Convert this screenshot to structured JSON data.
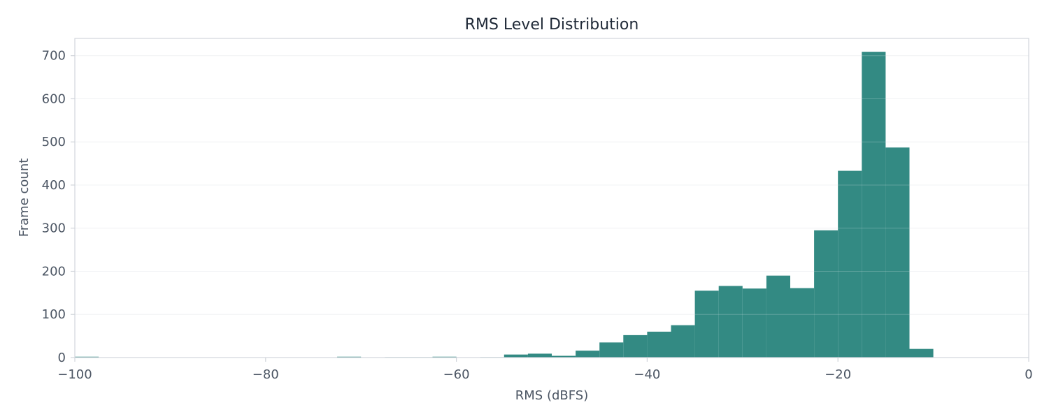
{
  "chart_data": {
    "type": "bar",
    "subtype": "histogram",
    "title": "RMS Level Distribution",
    "xlabel": "RMS (dBFS)",
    "ylabel": "Frame count",
    "xlim": [
      -100,
      0
    ],
    "ylim": [
      0,
      740
    ],
    "xticks": [
      -100,
      -80,
      -60,
      -40,
      -20,
      0
    ],
    "xtick_labels": [
      "−100",
      "−80",
      "−60",
      "−40",
      "−20",
      "0"
    ],
    "yticks": [
      0,
      100,
      200,
      300,
      400,
      500,
      600,
      700
    ],
    "ytick_labels": [
      "0",
      "100",
      "200",
      "300",
      "400",
      "500",
      "600",
      "700"
    ],
    "grid": true,
    "colors": {
      "bar": "#338A83",
      "grid": "#eef0f2",
      "spine": "#d1d5db",
      "text": "#4b5563",
      "title": "#1f2937"
    },
    "bins": [
      {
        "x0": -100.0,
        "x1": -97.5,
        "count": 2
      },
      {
        "x0": -72.5,
        "x1": -70.0,
        "count": 2
      },
      {
        "x0": -67.5,
        "x1": -65.0,
        "count": 1
      },
      {
        "x0": -65.0,
        "x1": -62.5,
        "count": 1
      },
      {
        "x0": -62.5,
        "x1": -60.0,
        "count": 2
      },
      {
        "x0": -57.5,
        "x1": -55.0,
        "count": 1
      },
      {
        "x0": -55.0,
        "x1": -52.5,
        "count": 7
      },
      {
        "x0": -52.5,
        "x1": -50.0,
        "count": 9
      },
      {
        "x0": -50.0,
        "x1": -47.5,
        "count": 4
      },
      {
        "x0": -47.5,
        "x1": -45.0,
        "count": 16
      },
      {
        "x0": -45.0,
        "x1": -42.5,
        "count": 35
      },
      {
        "x0": -42.5,
        "x1": -40.0,
        "count": 52
      },
      {
        "x0": -40.0,
        "x1": -37.5,
        "count": 60
      },
      {
        "x0": -37.5,
        "x1": -35.0,
        "count": 75
      },
      {
        "x0": -35.0,
        "x1": -32.5,
        "count": 155
      },
      {
        "x0": -32.5,
        "x1": -30.0,
        "count": 166
      },
      {
        "x0": -30.0,
        "x1": -27.5,
        "count": 160
      },
      {
        "x0": -27.5,
        "x1": -25.0,
        "count": 190
      },
      {
        "x0": -25.0,
        "x1": -22.5,
        "count": 161
      },
      {
        "x0": -22.5,
        "x1": -20.0,
        "count": 295
      },
      {
        "x0": -20.0,
        "x1": -17.5,
        "count": 433
      },
      {
        "x0": -17.5,
        "x1": -15.0,
        "count": 709
      },
      {
        "x0": -15.0,
        "x1": -12.5,
        "count": 487
      },
      {
        "x0": -12.5,
        "x1": -10.0,
        "count": 20
      }
    ]
  }
}
